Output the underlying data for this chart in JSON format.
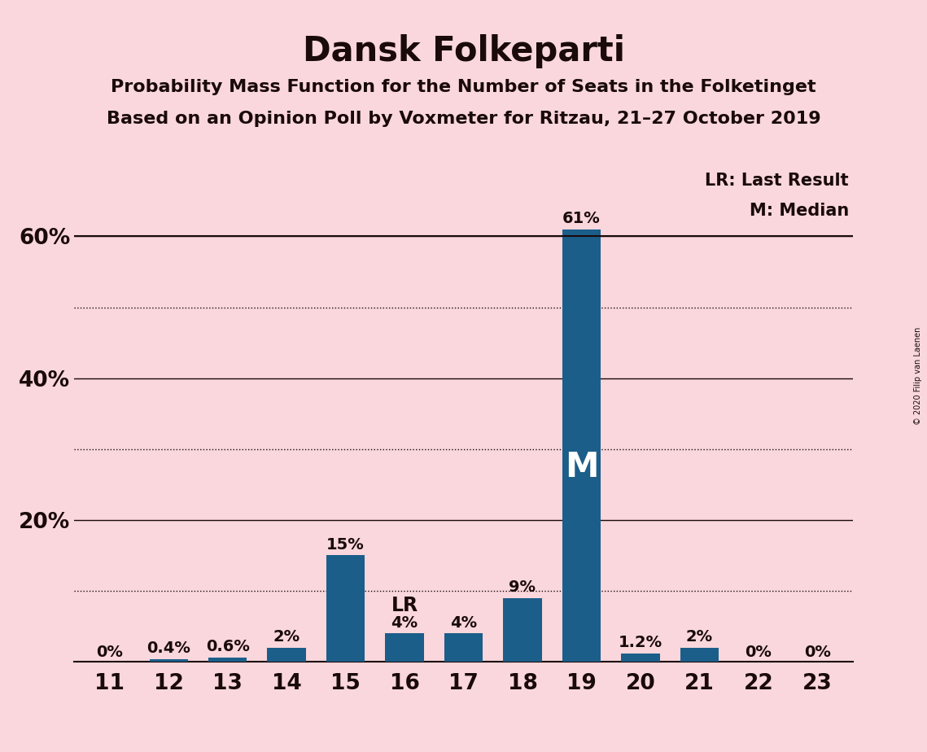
{
  "title": "Dansk Folkeparti",
  "subtitle1": "Probability Mass Function for the Number of Seats in the Folketinget",
  "subtitle2": "Based on an Opinion Poll by Voxmeter for Ritzau, 21–27 October 2019",
  "copyright": "© 2020 Filip van Laenen",
  "categories": [
    11,
    12,
    13,
    14,
    15,
    16,
    17,
    18,
    19,
    20,
    21,
    22,
    23
  ],
  "values": [
    0.0,
    0.4,
    0.6,
    2.0,
    15.0,
    4.0,
    4.0,
    9.0,
    61.0,
    1.2,
    2.0,
    0.0,
    0.0
  ],
  "labels": [
    "0%",
    "0.4%",
    "0.6%",
    "2%",
    "15%",
    "4%",
    "4%",
    "9%",
    "61%",
    "1.2%",
    "2%",
    "0%",
    "0%"
  ],
  "bar_color": "#1b5e8a",
  "background_color": "#f9d7dc",
  "lr_seat": 16,
  "median_seat": 19,
  "lr_label": "LR",
  "median_label": "M",
  "legend_lr": "LR: Last Result",
  "legend_m": "M: Median",
  "median_line_y": 60.0,
  "solid_lines": [
    20,
    40,
    60
  ],
  "dotted_lines": [
    10,
    30,
    50
  ],
  "ylim": [
    0,
    70
  ],
  "title_fontsize": 30,
  "subtitle_fontsize": 16,
  "bar_label_fontsize": 14,
  "axis_label_fontsize": 19,
  "legend_fontsize": 15
}
